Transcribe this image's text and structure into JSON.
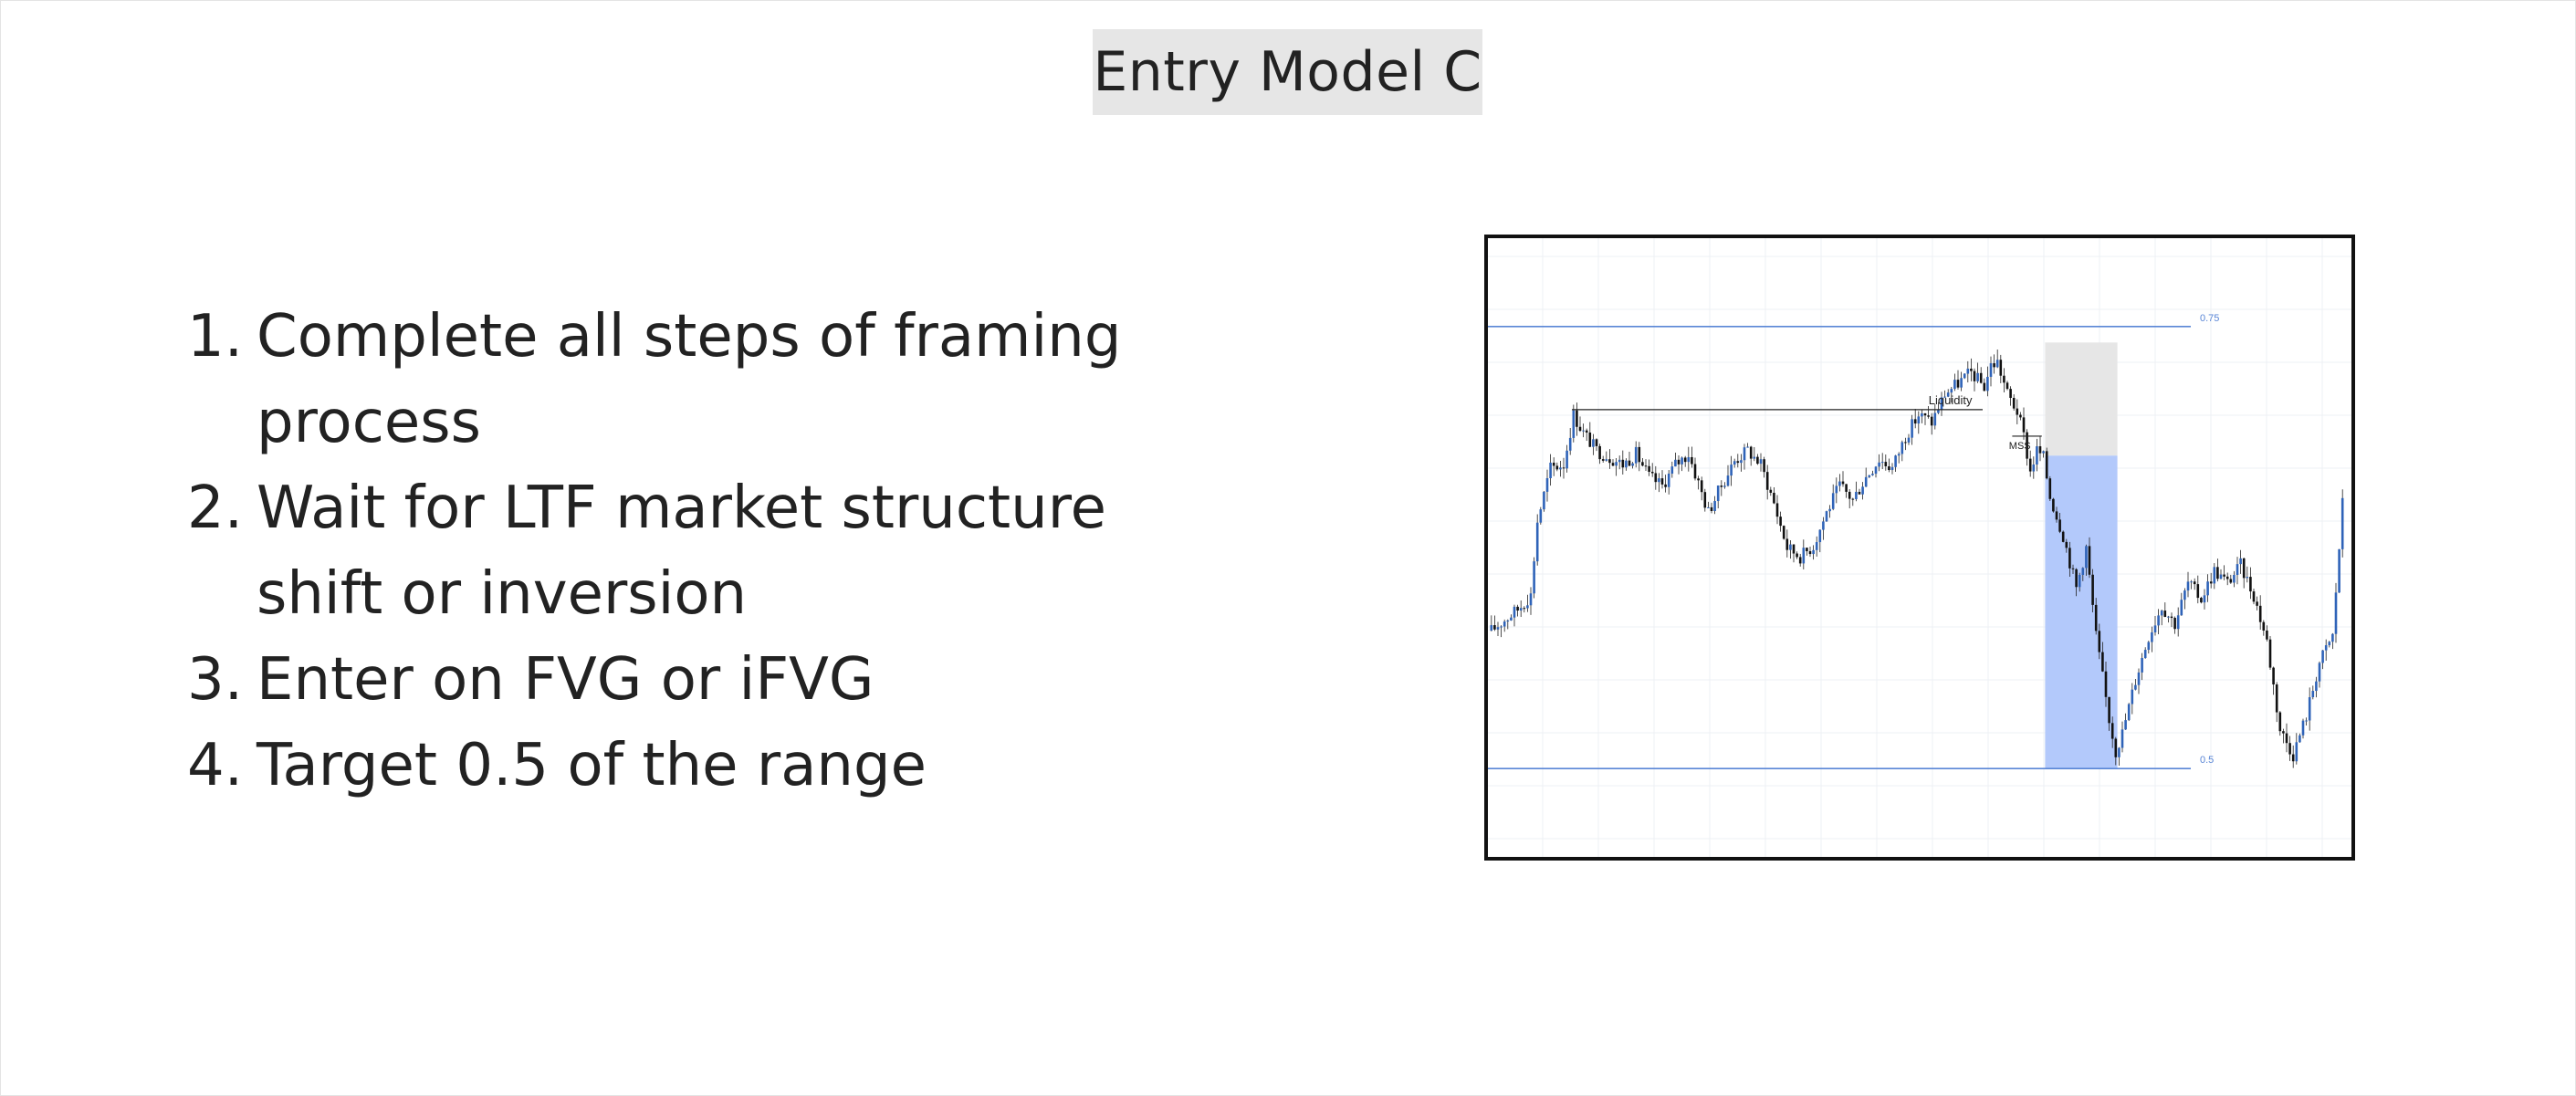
{
  "slide": {
    "title": "Entry Model C",
    "steps": [
      {
        "number": "1.",
        "lines": [
          "Complete all steps of framing",
          "process"
        ]
      },
      {
        "number": "2.",
        "lines": [
          "Wait for LTF market structure",
          "shift or inversion"
        ]
      },
      {
        "number": "3.",
        "lines": [
          "Enter on FVG or iFVG"
        ]
      },
      {
        "number": "4.",
        "lines": [
          "Target 0.5 of the range"
        ]
      }
    ]
  },
  "chart_data": {
    "type": "candlestick",
    "title": "",
    "xlabel": "",
    "ylabel": "",
    "ylim": [
      0.45,
      0.8
    ],
    "grid": true,
    "levels": [
      {
        "label": "0.75",
        "value": 0.75
      },
      {
        "label": "0.5",
        "value": 0.5
      }
    ],
    "annotations": [
      {
        "label": "Liquidity",
        "value": 0.703
      },
      {
        "label": "MSS",
        "value": 0.688
      }
    ],
    "zones": [
      {
        "name": "stop-zone",
        "start_index": 169,
        "end_index": 191,
        "top": 0.741,
        "bottom": 0.677
      },
      {
        "name": "target-zone",
        "start_index": 169,
        "end_index": 191,
        "top": 0.677,
        "bottom": 0.5
      }
    ],
    "colors": {
      "up": "#2f63b8",
      "down": "#111111",
      "level": "#5a86d6",
      "target_zone": "#b3c9fb",
      "stop_zone": "#e6e6e6",
      "grid": "#eef0f4"
    },
    "close_anchors": [
      [
        0,
        0.578
      ],
      [
        8,
        0.59
      ],
      [
        12,
        0.598
      ],
      [
        14,
        0.64
      ],
      [
        18,
        0.67
      ],
      [
        22,
        0.672
      ],
      [
        25,
        0.7
      ],
      [
        28,
        0.69
      ],
      [
        32,
        0.68
      ],
      [
        36,
        0.676
      ],
      [
        40,
        0.672
      ],
      [
        44,
        0.678
      ],
      [
        48,
        0.665
      ],
      [
        52,
        0.66
      ],
      [
        56,
        0.672
      ],
      [
        60,
        0.678
      ],
      [
        66,
        0.645
      ],
      [
        70,
        0.66
      ],
      [
        74,
        0.674
      ],
      [
        78,
        0.68
      ],
      [
        82,
        0.672
      ],
      [
        86,
        0.65
      ],
      [
        90,
        0.625
      ],
      [
        94,
        0.62
      ],
      [
        98,
        0.626
      ],
      [
        102,
        0.645
      ],
      [
        106,
        0.66
      ],
      [
        110,
        0.652
      ],
      [
        114,
        0.665
      ],
      [
        118,
        0.675
      ],
      [
        122,
        0.67
      ],
      [
        126,
        0.688
      ],
      [
        130,
        0.7
      ],
      [
        134,
        0.696
      ],
      [
        138,
        0.712
      ],
      [
        142,
        0.718
      ],
      [
        146,
        0.724
      ],
      [
        150,
        0.716
      ],
      [
        152,
        0.728
      ],
      [
        154,
        0.73
      ],
      [
        157,
        0.712
      ],
      [
        160,
        0.702
      ],
      [
        162,
        0.688
      ],
      [
        164,
        0.668
      ],
      [
        166,
        0.68
      ],
      [
        168,
        0.676
      ],
      [
        170,
        0.654
      ],
      [
        174,
        0.632
      ],
      [
        178,
        0.602
      ],
      [
        181,
        0.625
      ],
      [
        184,
        0.575
      ],
      [
        188,
        0.528
      ],
      [
        190,
        0.51
      ],
      [
        192,
        0.52
      ],
      [
        196,
        0.55
      ],
      [
        200,
        0.575
      ],
      [
        204,
        0.592
      ],
      [
        208,
        0.582
      ],
      [
        212,
        0.605
      ],
      [
        216,
        0.596
      ],
      [
        220,
        0.612
      ],
      [
        224,
        0.605
      ],
      [
        228,
        0.615
      ],
      [
        232,
        0.598
      ],
      [
        236,
        0.572
      ],
      [
        240,
        0.522
      ],
      [
        244,
        0.508
      ],
      [
        248,
        0.53
      ],
      [
        252,
        0.56
      ],
      [
        256,
        0.575
      ],
      [
        259,
        0.65
      ]
    ]
  }
}
